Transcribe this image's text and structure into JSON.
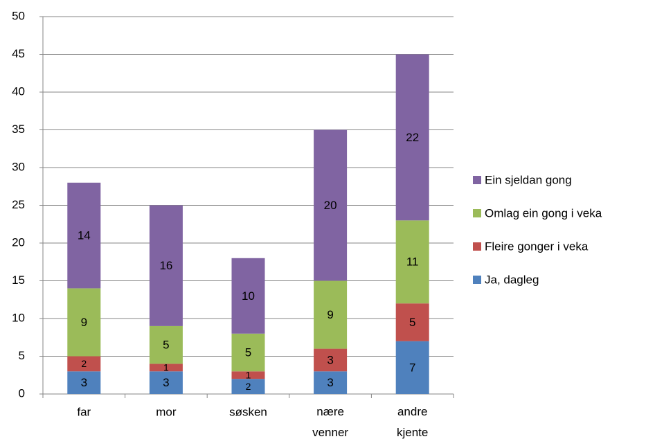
{
  "chart_data": {
    "type": "stacked-bar",
    "categories": [
      "far",
      "mor",
      "søsken",
      "nære venner",
      "andre kjente"
    ],
    "series": [
      {
        "name": "Ja, dagleg",
        "color": "#4f81bd",
        "values": [
          3,
          3,
          2,
          3,
          7
        ]
      },
      {
        "name": "Fleire gonger i veka",
        "color": "#c0504d",
        "values": [
          2,
          1,
          1,
          3,
          5
        ]
      },
      {
        "name": "Omlag ein gong i veka",
        "color": "#9bbb59",
        "values": [
          9,
          5,
          5,
          9,
          11
        ]
      },
      {
        "name": "Ein sjeldan gong",
        "color": "#8064a2",
        "values": [
          14,
          16,
          10,
          20,
          22
        ]
      }
    ],
    "ylim": [
      0,
      50
    ],
    "yticks": [
      0,
      5,
      10,
      15,
      20,
      25,
      30,
      35,
      40,
      45,
      50
    ],
    "grid": true,
    "legend": "right"
  }
}
